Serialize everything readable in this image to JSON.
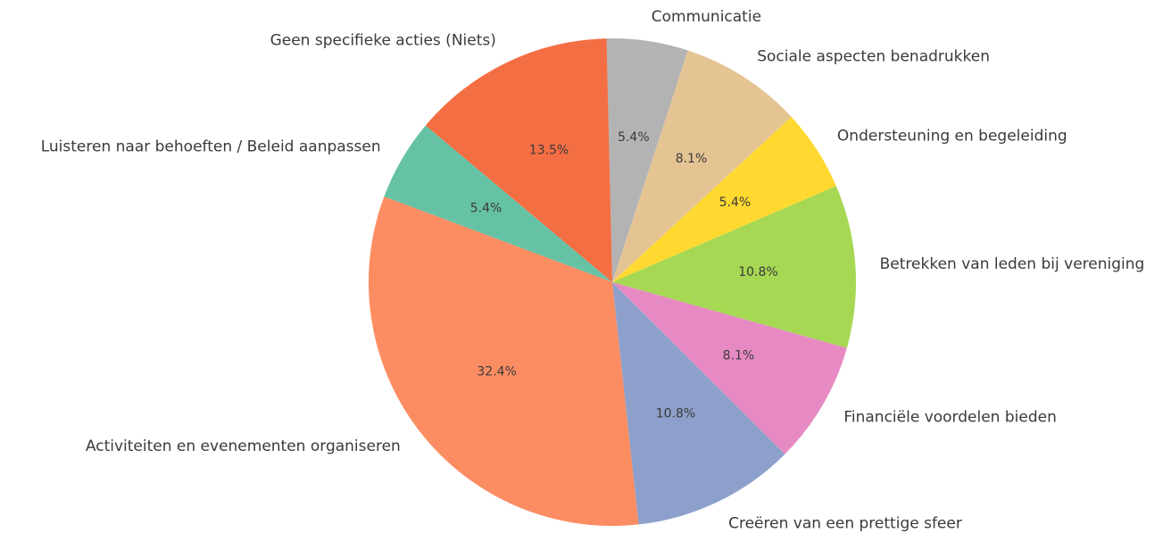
{
  "chart_data": {
    "type": "pie",
    "categories": [
      "Luisteren naar behoeften / Beleid aanpassen",
      "Activiteiten en evenementen organiseren",
      "Creëren van een prettige sfeer",
      "Financiële voordelen bieden",
      "Betrekken van leden bij vereniging",
      "Ondersteuning en begeleiding",
      "Sociale aspecten benadrukken",
      "Communicatie",
      "Geen specifieke acties (Niets)"
    ],
    "values": [
      5.4,
      32.4,
      10.8,
      8.1,
      10.8,
      5.4,
      8.1,
      5.4,
      13.5
    ],
    "value_labels": [
      "5.4%",
      "32.4%",
      "10.8%",
      "8.1%",
      "10.8%",
      "5.4%",
      "8.1%",
      "5.4%",
      "13.5%"
    ],
    "colors": [
      "#66c2a5",
      "#fc8d62",
      "#8da0cb",
      "#e78ac3",
      "#a6d854",
      "#ffd92f",
      "#e5c494",
      "#b3b3b3",
      "#f46e43"
    ]
  }
}
